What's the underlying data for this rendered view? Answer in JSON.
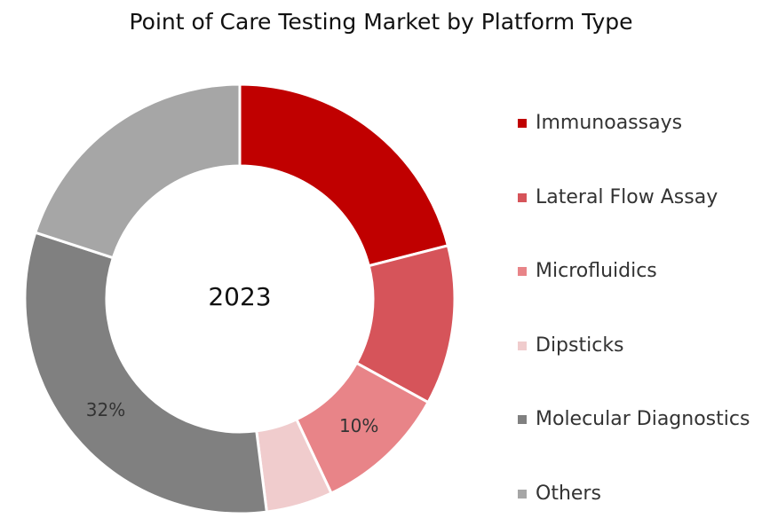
{
  "chart_data": {
    "type": "pie",
    "title": "Point of Care Testing Market by Platform Type",
    "center_label": "2023",
    "series": [
      {
        "name": "Immunoassays",
        "value": 21,
        "color": "#c00000",
        "label": ""
      },
      {
        "name": "Lateral Flow Assay",
        "value": 12,
        "color": "#d6545a",
        "label": ""
      },
      {
        "name": "Microfluidics",
        "value": 10,
        "color": "#e88488",
        "label": "10%"
      },
      {
        "name": "Dipsticks",
        "value": 5,
        "color": "#f0cccd",
        "label": ""
      },
      {
        "name": "Molecular Diagnostics",
        "value": 32,
        "color": "#808080",
        "label": "32%"
      },
      {
        "name": "Others",
        "value": 20,
        "color": "#a6a6a6",
        "label": ""
      }
    ],
    "legend_position": "right"
  }
}
